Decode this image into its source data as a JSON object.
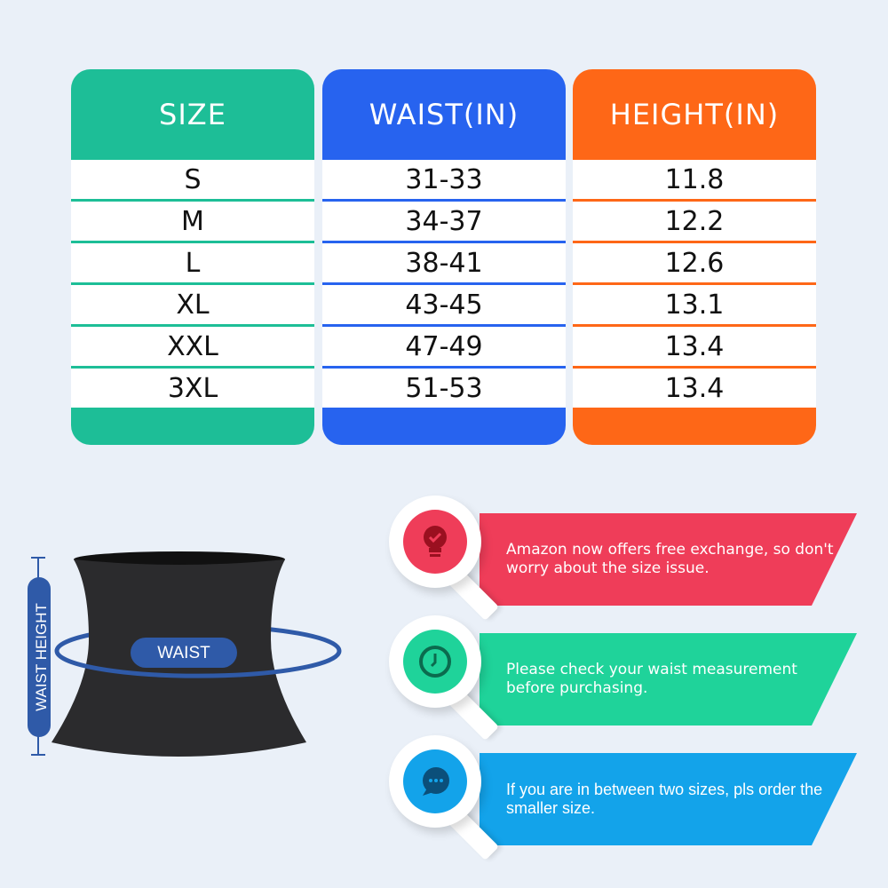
{
  "colors": {
    "size": "#1dbe97",
    "waist": "#2763ef",
    "height": "#fe6717",
    "background": "#eaf0f8"
  },
  "table": {
    "headers": [
      "SIZE",
      "WAIST(IN)",
      "HEIGHT(IN)"
    ],
    "rows": [
      [
        "S",
        "31-33",
        "11.8"
      ],
      [
        "M",
        "34-37",
        "12.2"
      ],
      [
        "L",
        "38-41",
        "12.6"
      ],
      [
        "XL",
        "43-45",
        "13.1"
      ],
      [
        "XXL",
        "47-49",
        "13.4"
      ],
      [
        "3XL",
        "51-53",
        "13.4"
      ]
    ]
  },
  "diagram": {
    "height_label": "WAIST HEIGHT",
    "waist_label": "WAIST"
  },
  "tips": [
    {
      "icon": "lightbulb-check-icon",
      "color": "#ef3d59",
      "text": "Amazon now offers free exchange, so don't worry about the size issue."
    },
    {
      "icon": "clock-icon",
      "color": "#1fd39a",
      "text": "Please check your waist measurement before purchasing."
    },
    {
      "icon": "chat-bubble-icon",
      "color": "#13a3ea",
      "text": "If you are in between two sizes, pls order the smaller size."
    }
  ]
}
